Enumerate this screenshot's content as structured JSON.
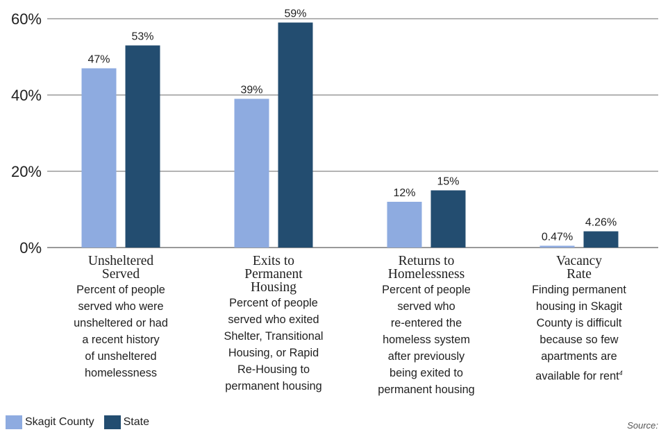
{
  "chart_data": {
    "type": "bar",
    "categories": [
      {
        "title_lines": [
          "Unsheltered",
          "Served"
        ],
        "desc_lines": [
          "Percent of people",
          "served who were",
          "unsheltered or had",
          "a recent history",
          "of unsheltered",
          "homelessness"
        ],
        "desc_sup": ""
      },
      {
        "title_lines": [
          "Exits to",
          "Permanent",
          "Housing"
        ],
        "desc_lines": [
          "Percent of people",
          "served who exited",
          "Shelter, Transitional",
          "Housing, or Rapid",
          "Re-Housing to",
          "permanent housing"
        ],
        "desc_sup": ""
      },
      {
        "title_lines": [
          "Returns to",
          "Homelessness"
        ],
        "desc_lines": [
          "Percent of people",
          "served who",
          "re-entered the",
          "homeless system",
          "after previously",
          "being exited to",
          "permanent housing"
        ],
        "desc_sup": ""
      },
      {
        "title_lines": [
          "Vacancy",
          "Rate"
        ],
        "desc_lines": [
          "Finding permanent",
          "housing in Skagit",
          "County is difficult",
          "because so few",
          "apartments are",
          "available for rent"
        ],
        "desc_sup": "4"
      }
    ],
    "series": [
      {
        "name": "Skagit County",
        "color": "#8eabe0",
        "values": [
          47,
          39,
          12,
          0.47
        ],
        "labels": [
          "47%",
          "39%",
          "12%",
          "0.47%"
        ]
      },
      {
        "name": "State",
        "color": "#234d70",
        "values": [
          53,
          59,
          15,
          4.26
        ],
        "labels": [
          "53%",
          "59%",
          "15%",
          "4.26%"
        ]
      }
    ],
    "yticks": [
      0,
      20,
      40,
      60
    ],
    "ytick_labels": [
      "0%",
      "20%",
      "40%",
      "60%"
    ],
    "ylim": [
      0,
      60
    ],
    "grid": true,
    "legend_position": "bottom-left"
  },
  "source_label": "Source:"
}
